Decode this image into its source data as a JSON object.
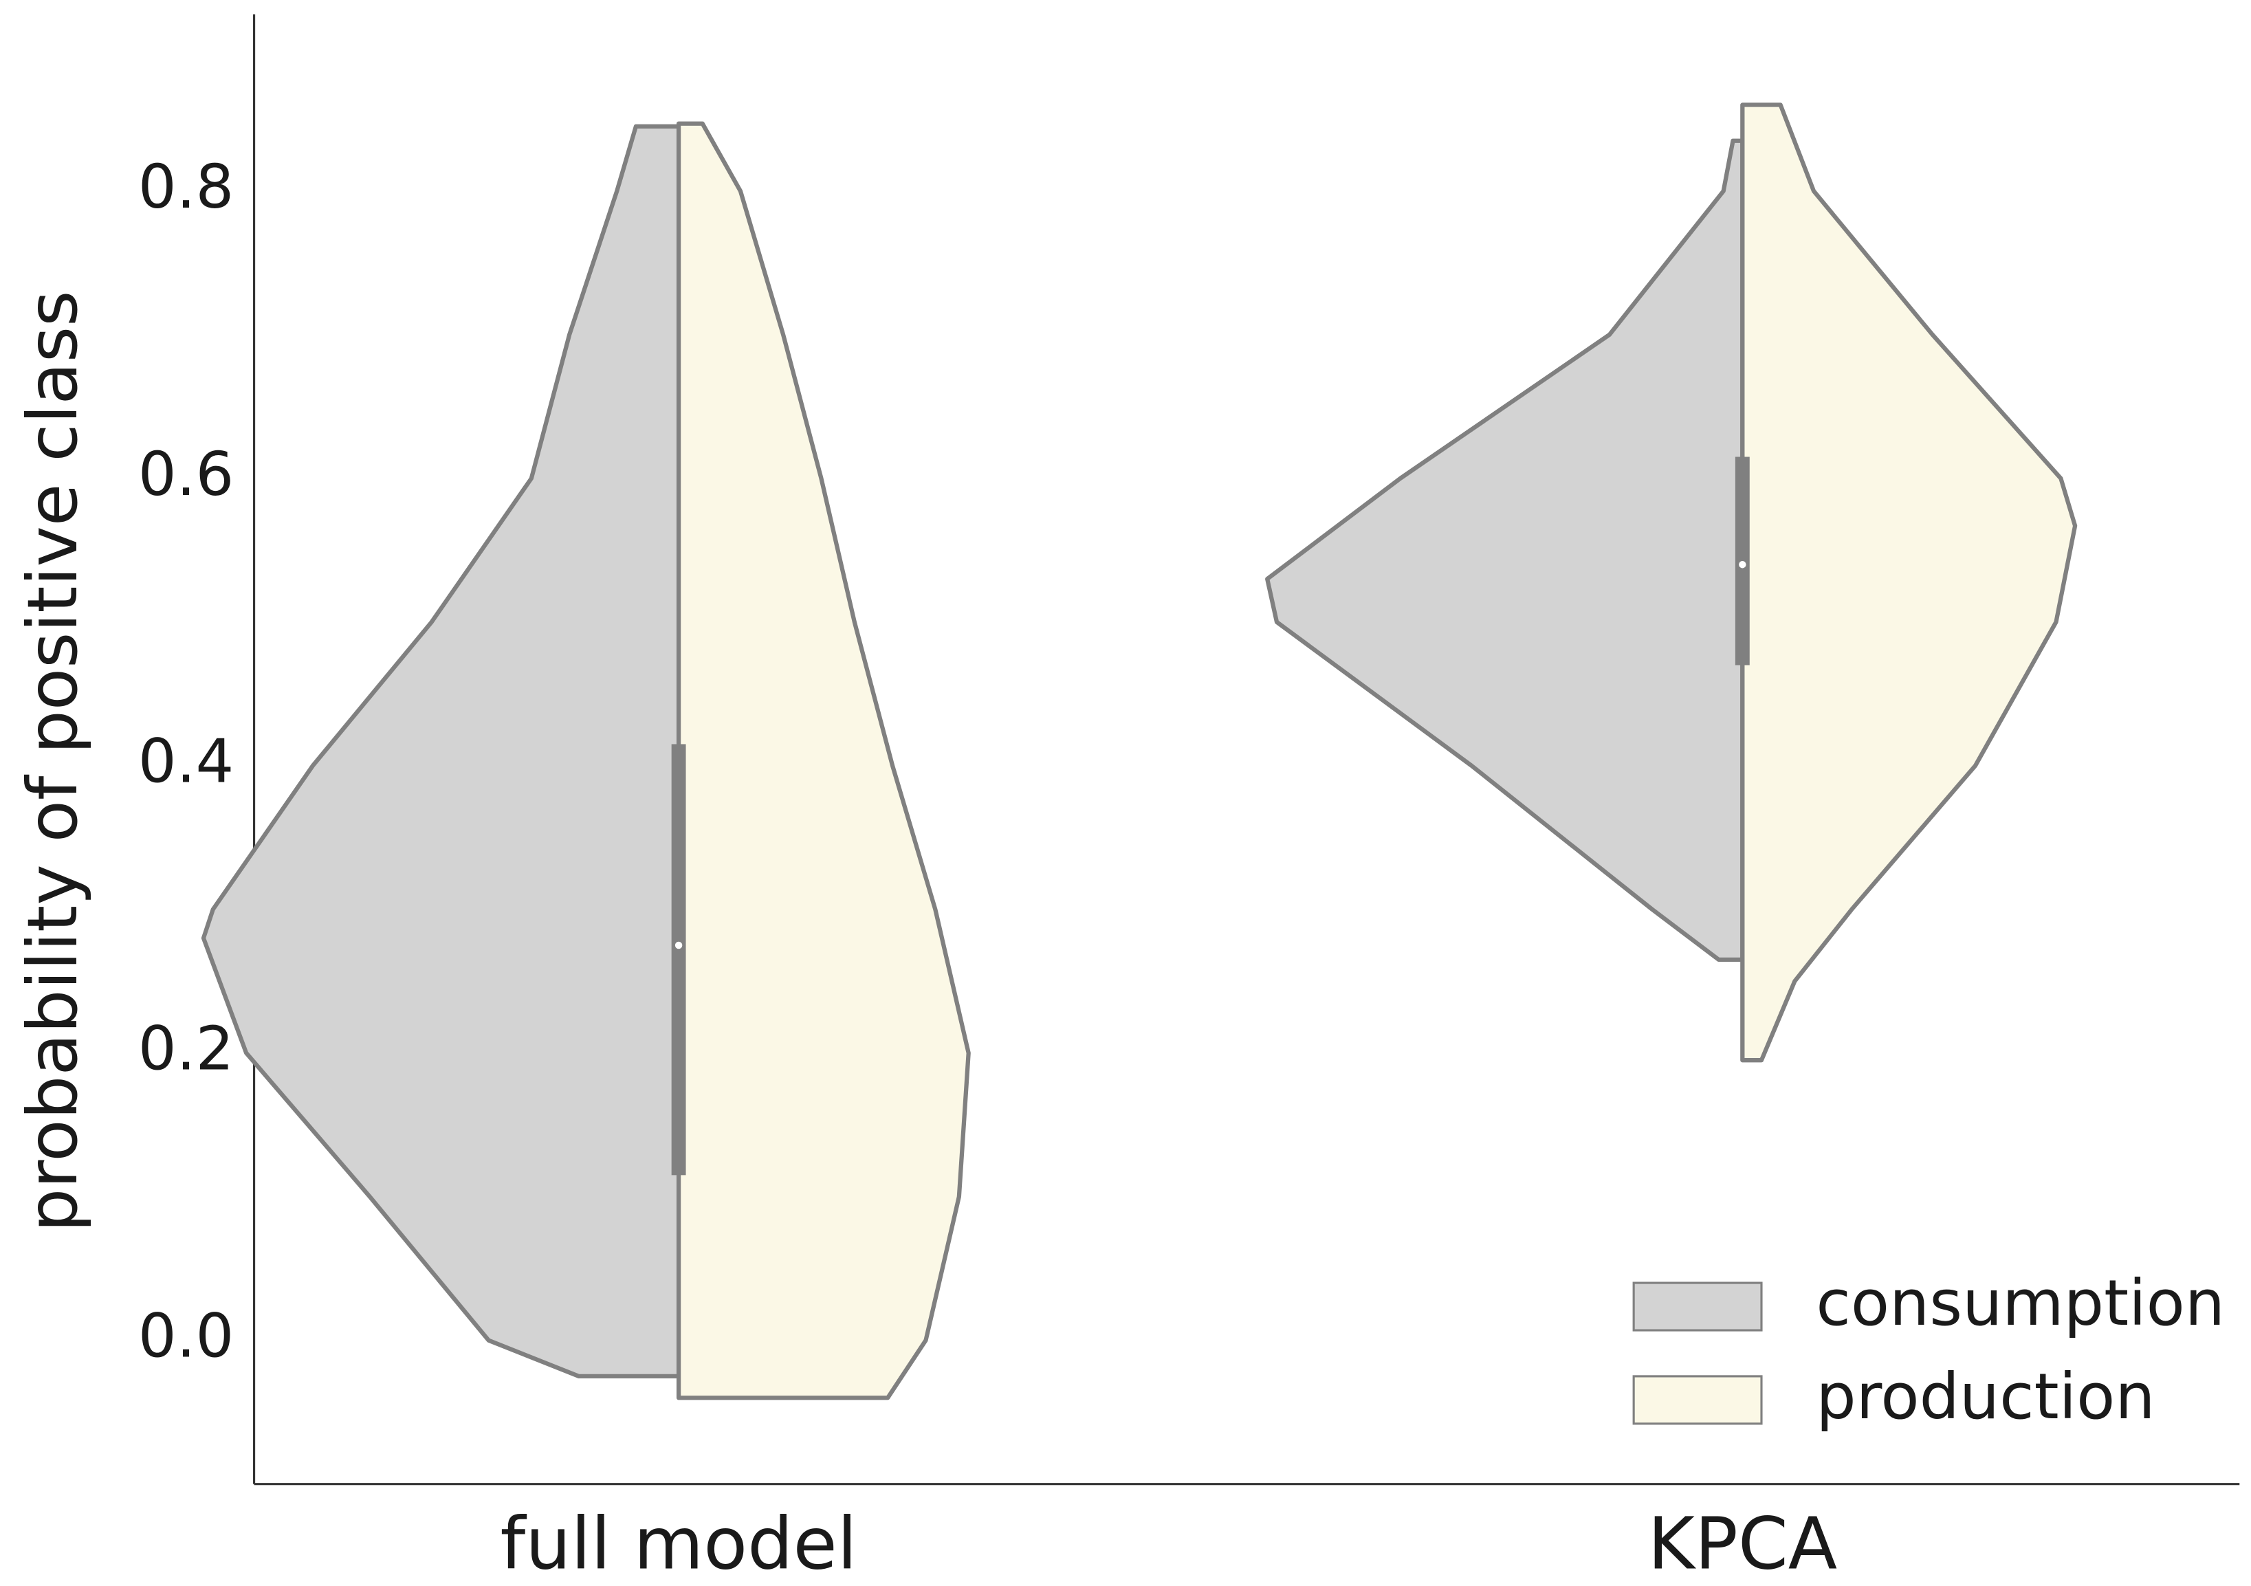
{
  "chart_data": {
    "type": "violin",
    "ylabel": "probability of positive class",
    "categories": [
      "full model",
      "KPCA"
    ],
    "ylim": [
      -0.1,
      0.923
    ],
    "yticks": [
      {
        "value": 0,
        "label": "0.0"
      },
      0.2,
      0.4,
      0.6,
      0.8
    ],
    "grid": false,
    "legend": "lower right",
    "outline_color": "#808080",
    "series": [
      {
        "name": "consumption",
        "color": "#d3d3d3",
        "side": "left",
        "values": [
          {
            "y": [
              -0.025,
              0,
              0.1,
              0.2,
              0.28,
              0.3,
              0.4,
              0.5,
              0.6,
              0.7,
              0.8,
              0.845
            ],
            "density": [
              0.21,
              0.4,
              0.65,
              0.91,
              1.0,
              0.98,
              0.77,
              0.52,
              0.31,
              0.23,
              0.13,
              0.09
            ]
          },
          {
            "y": [
              0.265,
              0.3,
              0.4,
              0.5,
              0.53,
              0.6,
              0.7,
              0.8,
              0.835
            ],
            "density": [
              0.05,
              0.19,
              0.57,
              0.98,
              1.0,
              0.72,
              0.28,
              0.04,
              0.02
            ]
          }
        ]
      },
      {
        "name": "production",
        "color": "#fbf8e6",
        "side": "right",
        "values": [
          {
            "y": [
              -0.04,
              0,
              0.1,
              0.2,
              0.3,
              0.4,
              0.5,
              0.6,
              0.7,
              0.8,
              0.847
            ],
            "density": [
              0.44,
              0.52,
              0.59,
              0.61,
              0.54,
              0.45,
              0.37,
              0.3,
              0.22,
              0.13,
              0.05
            ]
          },
          {
            "y": [
              0.195,
              0.25,
              0.3,
              0.4,
              0.5,
              0.567,
              0.6,
              0.7,
              0.8,
              0.86
            ],
            "density": [
              0.04,
              0.11,
              0.23,
              0.49,
              0.66,
              0.7,
              0.67,
              0.4,
              0.15,
              0.08
            ]
          }
        ]
      }
    ],
    "box": [
      {
        "q1": 0.115,
        "median": 0.275,
        "q3": 0.415
      },
      {
        "q1": 0.47,
        "median": 0.54,
        "q3": 0.615
      }
    ]
  }
}
